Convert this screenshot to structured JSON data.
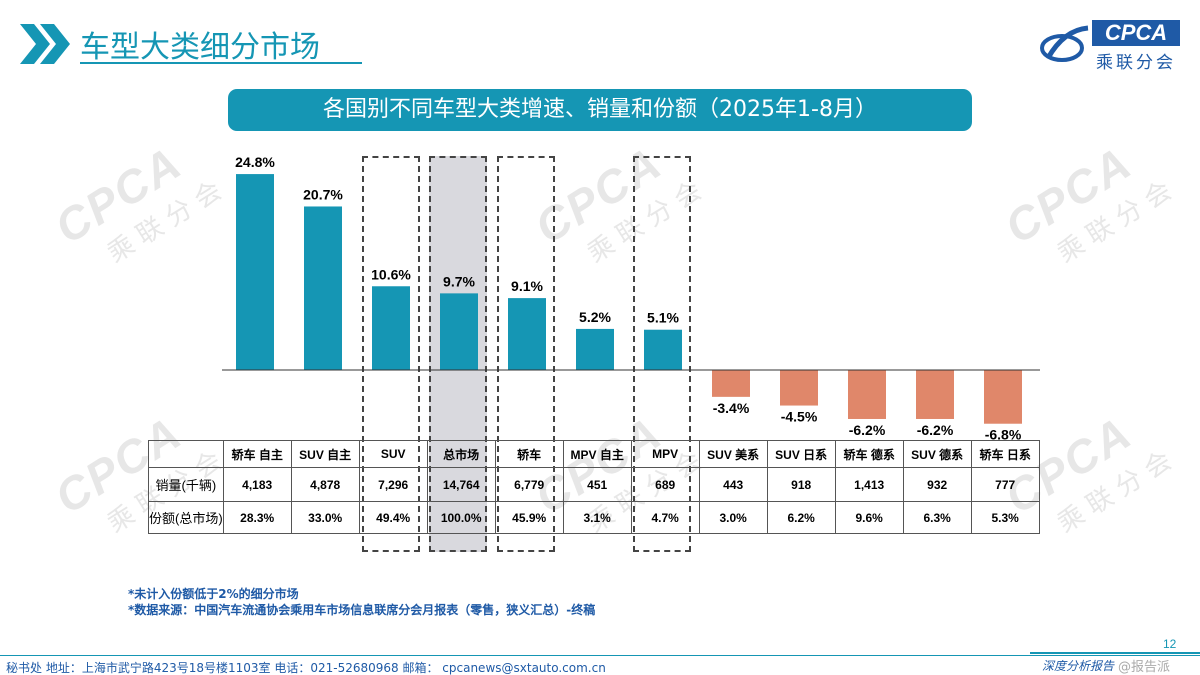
{
  "header": {
    "title": "车型大类细分市场"
  },
  "logo": {
    "abbr": "CPCA",
    "cn": "乘联分会"
  },
  "watermark": {
    "abbr": "CPCA",
    "cn": "乘联分会"
  },
  "chart_data": {
    "type": "bar",
    "title": "各国别不同车型大类增速、销量和份额（2025年1-8月）",
    "categories": [
      "轿车 自主",
      "SUV 自主",
      "SUV",
      "总市场",
      "轿车",
      "MPV 自主",
      "MPV",
      "SUV 美系",
      "SUV 日系",
      "轿车 德系",
      "SUV 德系",
      "轿车 日系"
    ],
    "series": [
      {
        "values": [
          24.8,
          20.7,
          10.6,
          9.7,
          9.1,
          5.2,
          5.1,
          -3.4,
          -4.5,
          -6.2,
          -6.2,
          -6.8
        ]
      }
    ],
    "data_labels": [
      "24.8%",
      "20.7%",
      "10.6%",
      "9.7%",
      "9.1%",
      "5.2%",
      "5.1%",
      "-3.4%",
      "-4.5%",
      "-6.2%",
      "-6.2%",
      "-6.8%"
    ],
    "ylim": [
      -9,
      27
    ],
    "grid": false,
    "colors": {
      "positive": "#1596b4",
      "negative": "#e0876a",
      "highlight_shade": "#d9d9de"
    },
    "highlighted": [
      "SUV",
      "总市场",
      "轿车",
      "MPV"
    ],
    "shaded": [
      "总市场"
    ]
  },
  "table": {
    "rows": [
      {
        "label": "销量(千辆)",
        "cells": [
          "4,183",
          "4,878",
          "7,296",
          "14,764",
          "6,779",
          "451",
          "689",
          "443",
          "918",
          "1,413",
          "932",
          "777"
        ]
      },
      {
        "label": "份额(总市场)",
        "cells": [
          "28.3%",
          "33.0%",
          "49.4%",
          "100.0%",
          "45.9%",
          "3.1%",
          "4.7%",
          "3.0%",
          "6.2%",
          "9.6%",
          "6.3%",
          "5.3%"
        ]
      }
    ]
  },
  "notes": {
    "line1": "*未计入份额低于2%的细分市场",
    "line2": "*数据来源：中国汽车流通协会乘用车市场信息联席分会月报表（零售，狭义汇总）-终稿"
  },
  "footer": {
    "page": "12",
    "address": "秘书处   地址：上海市武宁路423号18号楼1103室   电话：021-52680968   邮箱：  cpcanews@sxtauto.com.cn",
    "slogan": "深度分析报告",
    "badge": "@报告派"
  }
}
